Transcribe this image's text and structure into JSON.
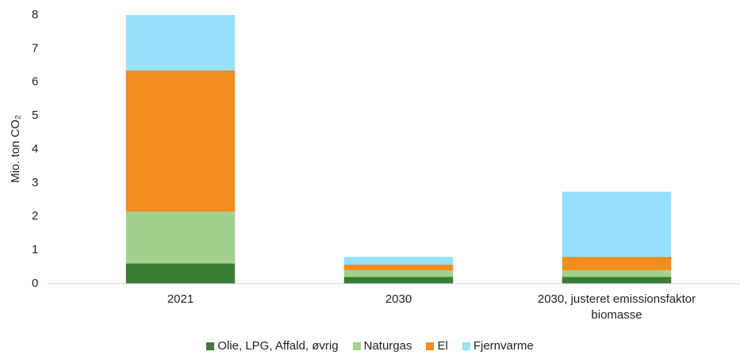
{
  "chart_data": {
    "type": "stacked_bar",
    "y_label": "Mio. ton CO₂",
    "categories": [
      "2021",
      "2030",
      "2030, justeret emissionsfaktor biomasse"
    ],
    "series": [
      {
        "name": "Olie, LPG, Affald, øvrig",
        "color": "#3a7d34",
        "values": [
          0.6,
          0.2,
          0.2
        ]
      },
      {
        "name": "Naturgas",
        "color": "#a3d08b",
        "values": [
          1.55,
          0.2,
          0.2
        ]
      },
      {
        "name": "El",
        "color": "#f28c23",
        "values": [
          4.2,
          0.17,
          0.4
        ]
      },
      {
        "name": "Fjernvarme",
        "color": "#96e0fa",
        "values": [
          1.65,
          0.23,
          1.94
        ]
      }
    ],
    "ylim": [
      0,
      8
    ],
    "yticks": [
      0,
      1,
      2,
      3,
      4,
      5,
      6,
      7,
      8
    ],
    "grid": false,
    "legend": "bottom"
  }
}
